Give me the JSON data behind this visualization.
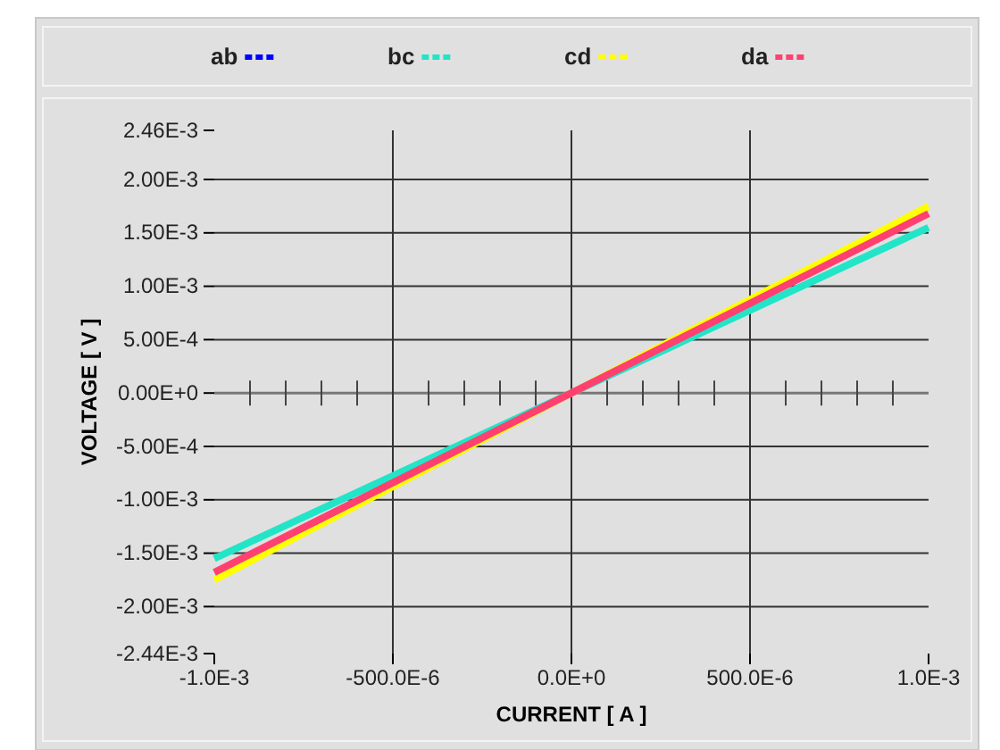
{
  "chart_data": {
    "type": "line",
    "xlabel": "CURRENT  [ A ]",
    "ylabel": "VOLTAGE [ V ]",
    "x": [
      -0.001,
      0,
      0.001
    ],
    "series": [
      {
        "name": "ab",
        "color": "#0000ff",
        "values": [
          null,
          null,
          null
        ]
      },
      {
        "name": "bc",
        "color": "#22e5c8",
        "values": [
          -0.00155,
          0,
          0.00155
        ]
      },
      {
        "name": "cd",
        "color": "#ffff00",
        "values": [
          -0.00175,
          0,
          0.00175
        ]
      },
      {
        "name": "da",
        "color": "#ff4070",
        "values": [
          -0.00168,
          0,
          0.00168
        ]
      }
    ],
    "xlim": [
      -0.001,
      0.001
    ],
    "xticks": [
      {
        "value": -0.001,
        "label": "-1.0E-3"
      },
      {
        "value": -0.0005,
        "label": "-500.0E-6"
      },
      {
        "value": 0,
        "label": "0.0E+0"
      },
      {
        "value": 0.0005,
        "label": "500.0E-6"
      },
      {
        "value": 0.001,
        "label": "1.0E-3"
      }
    ],
    "ylim": [
      -0.00244,
      0.00246
    ],
    "yticks": [
      {
        "value": 0.00246,
        "label": "2.46E-3"
      },
      {
        "value": 0.002,
        "label": "2.00E-3"
      },
      {
        "value": 0.0015,
        "label": "1.50E-3"
      },
      {
        "value": 0.001,
        "label": "1.00E-3"
      },
      {
        "value": 0.0005,
        "label": "5.00E-4"
      },
      {
        "value": 0,
        "label": "0.00E+0"
      },
      {
        "value": -0.0005,
        "label": "-5.00E-4"
      },
      {
        "value": -0.001,
        "label": "-1.00E-3"
      },
      {
        "value": -0.0015,
        "label": "-1.50E-3"
      },
      {
        "value": -0.002,
        "label": "-2.00E-3"
      },
      {
        "value": -0.00244,
        "label": "-2.44E-3"
      }
    ],
    "grid": true,
    "legend": "top",
    "line_style": "solid",
    "marker": "none"
  }
}
